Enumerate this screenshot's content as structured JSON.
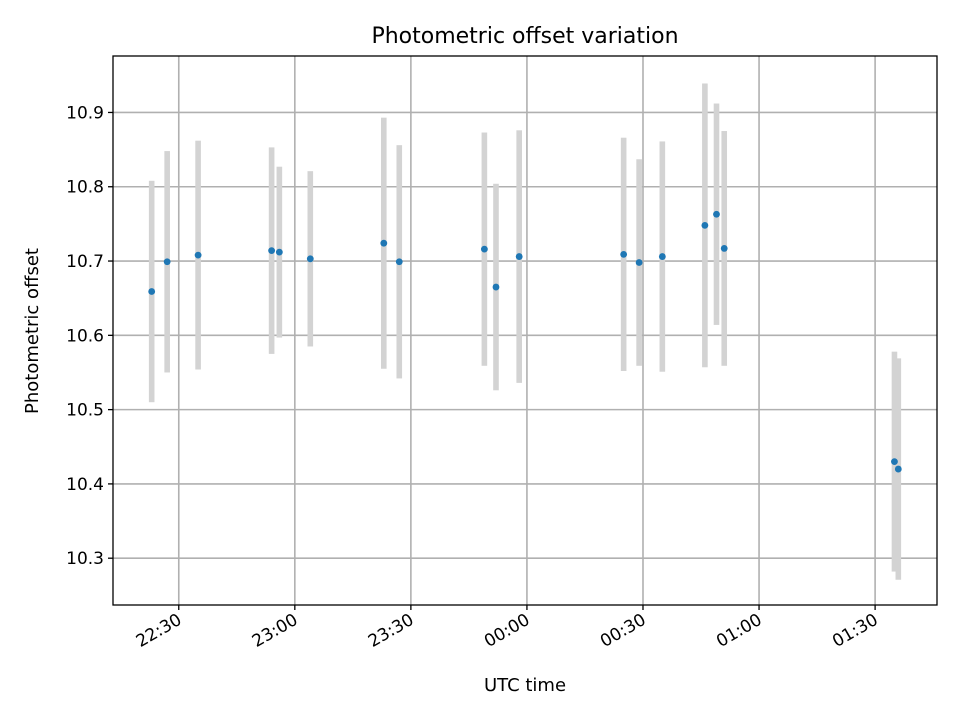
{
  "chart_data": {
    "type": "scatter",
    "title": "Photometric offset variation",
    "xlabel": "UTC time",
    "ylabel": "Photometric offset",
    "grid": true,
    "x_time_range": [
      "22:13",
      "01:46"
    ],
    "ylim": [
      10.237,
      10.976
    ],
    "xtick_labels": [
      "22:30",
      "23:00",
      "23:30",
      "00:00",
      "00:30",
      "01:00",
      "01:30"
    ],
    "xtick_times": [
      "22:30",
      "23:00",
      "23:30",
      "00:00",
      "00:30",
      "01:00",
      "01:30"
    ],
    "ytick_values": [
      10.3,
      10.4,
      10.5,
      10.6,
      10.7,
      10.8,
      10.9
    ],
    "ytick_labels": [
      "10.3",
      "10.4",
      "10.5",
      "10.6",
      "10.7",
      "10.8",
      "10.9"
    ],
    "marker_color": "#1f77b4",
    "errorbar_color": "#d3d3d3",
    "points": [
      {
        "time": "22:23",
        "y": 10.659,
        "err": 0.149
      },
      {
        "time": "22:27",
        "y": 10.699,
        "err": 0.149
      },
      {
        "time": "22:35",
        "y": 10.708,
        "err": 0.154
      },
      {
        "time": "22:54",
        "y": 10.714,
        "err": 0.139
      },
      {
        "time": "22:56",
        "y": 10.712,
        "err": 0.115
      },
      {
        "time": "23:04",
        "y": 10.703,
        "err": 0.118
      },
      {
        "time": "23:23",
        "y": 10.724,
        "err": 0.169
      },
      {
        "time": "23:27",
        "y": 10.699,
        "err": 0.157
      },
      {
        "time": "23:49",
        "y": 10.716,
        "err": 0.157
      },
      {
        "time": "23:52",
        "y": 10.665,
        "err": 0.139
      },
      {
        "time": "23:58",
        "y": 10.706,
        "err": 0.17
      },
      {
        "time": "00:25",
        "y": 10.709,
        "err": 0.157
      },
      {
        "time": "00:29",
        "y": 10.698,
        "err": 0.139
      },
      {
        "time": "00:35",
        "y": 10.706,
        "err": 0.155
      },
      {
        "time": "00:46",
        "y": 10.748,
        "err": 0.191
      },
      {
        "time": "00:49",
        "y": 10.763,
        "err": 0.149
      },
      {
        "time": "00:51",
        "y": 10.717,
        "err": 0.158
      },
      {
        "time": "01:35",
        "y": 10.43,
        "err": 0.148
      },
      {
        "time": "01:36",
        "y": 10.42,
        "err": 0.149
      }
    ]
  }
}
